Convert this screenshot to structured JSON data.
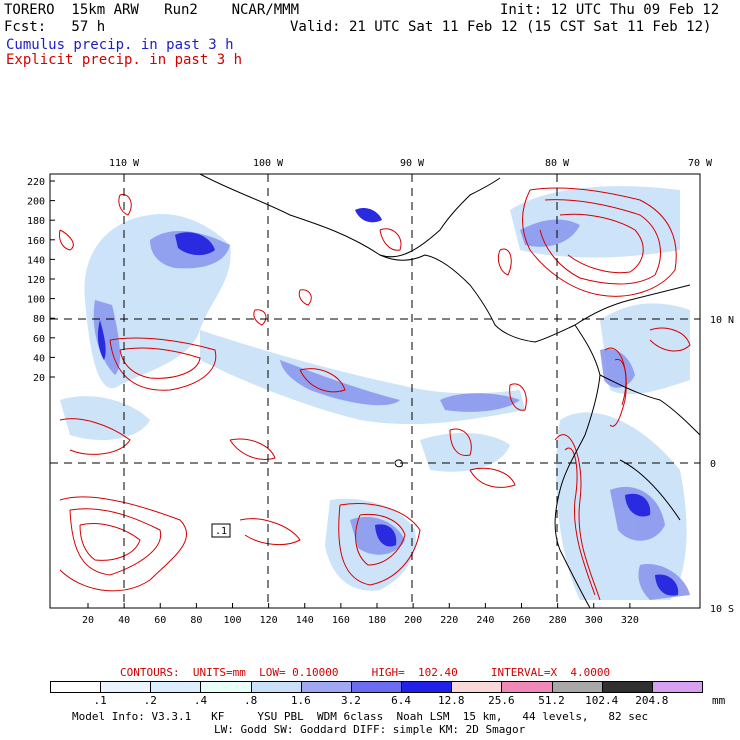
{
  "header": {
    "model_line": "TORERO  15km ARW   Run2    NCAR/MMM",
    "init_line": "Init: 12 UTC Thu 09 Feb 12",
    "fcst_line": "Fcst:   57 h",
    "valid_line": "Valid: 21 UTC Sat 11 Feb 12 (15 CST Sat 11 Feb 12)",
    "legend_cumulus": "Cumulus precip. in past 3 h",
    "legend_explicit": "Explicit precip. in past 3 h"
  },
  "map": {
    "top_lon_labels": [
      "110 W",
      "100 W",
      "90 W",
      "80 W",
      "70 W"
    ],
    "right_lat_labels": [
      "10 N",
      "0",
      "10 S"
    ],
    "y_ticks": [
      "220",
      "200",
      "180",
      "160",
      "140",
      "120",
      "100",
      "80",
      "60",
      "40",
      "20"
    ],
    "x_ticks": [
      "20",
      "40",
      "60",
      "80",
      "100",
      "120",
      "140",
      "160",
      "180",
      "200",
      "220",
      "240",
      "260",
      "280",
      "300",
      "320"
    ],
    "contour_box_label": ".1"
  },
  "contours_line": {
    "label": "CONTOURS:  UNITS=mm  LOW= 0.10000     HIGH=  102.40     INTERVAL=X  4.0000"
  },
  "colorbar": {
    "labels": [
      ".1",
      ".2",
      ".4",
      ".8",
      "1.6",
      "3.2",
      "6.4",
      "12.8",
      "25.6",
      "51.2",
      "102.4",
      "204.8"
    ],
    "unit": "mm",
    "colors": [
      "#ffffff",
      "#ecf4ff",
      "#dceefe",
      "#e8fff8",
      "#c8e0f8",
      "#9fa8f0",
      "#6c6cf0",
      "#2020e8",
      "#f8d8d8",
      "#f088b8",
      "#a8a8a8",
      "#303030",
      "#d8a0f0"
    ]
  },
  "footer": {
    "line1": "Model Info: V3.3.1   KF     YSU PBL  WDM 6class  Noah LSM  15 km,   44 levels,   82 sec",
    "line2": "LW: Godd SW: Goddard DIFF: simple KM: 2D Smagor"
  },
  "colors": {
    "explicit": "#d40000",
    "cumulus": "#1c1cc8",
    "coast": "#000000"
  }
}
